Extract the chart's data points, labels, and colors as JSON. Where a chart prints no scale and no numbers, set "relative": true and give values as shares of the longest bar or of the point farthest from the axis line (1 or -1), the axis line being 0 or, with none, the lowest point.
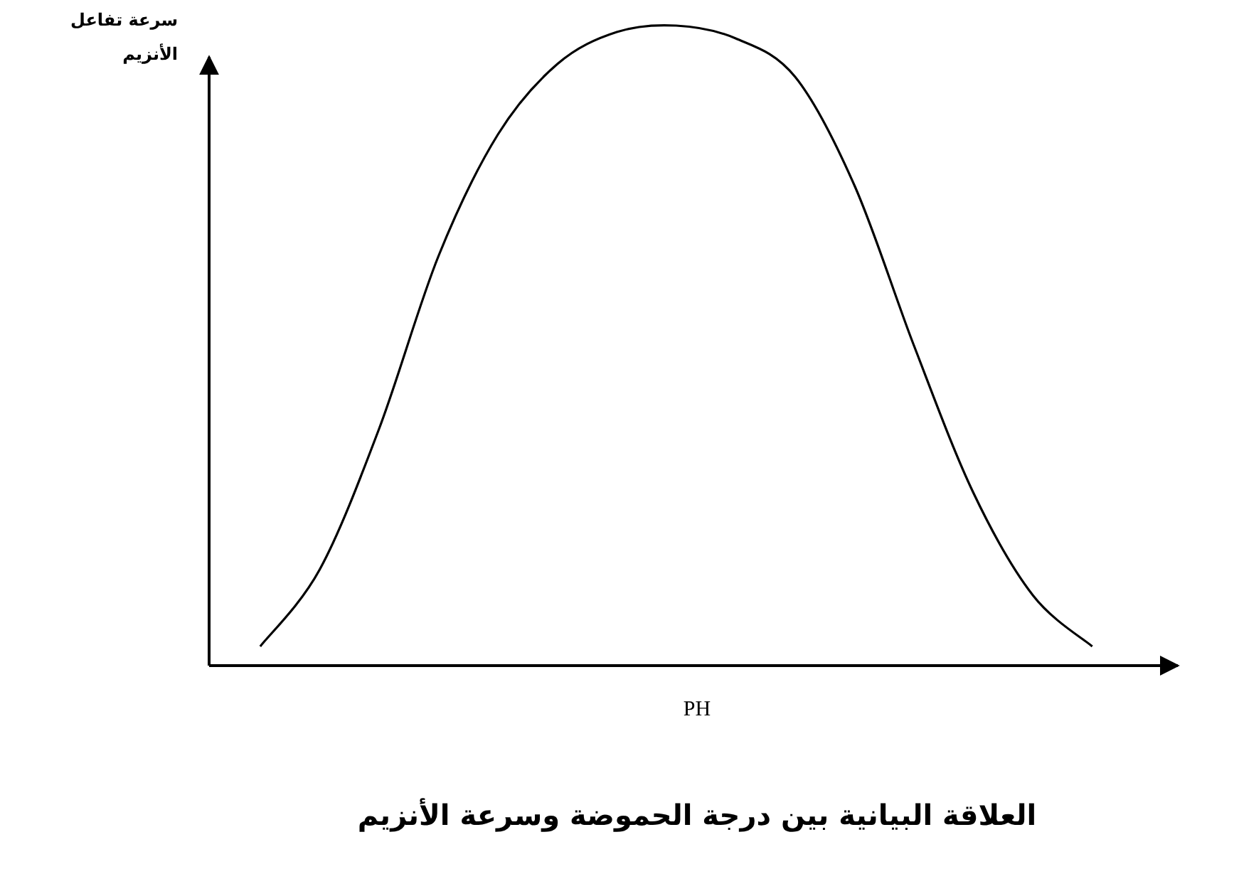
{
  "chart_data": {
    "type": "line",
    "relative": true,
    "title": "العلاقة البيانية بين درجة الحموضة وسرعة الأنزيم",
    "xlabel": "PH",
    "ylabel": "سرعة تفاعل الأنزيم",
    "categories": [
      null,
      null,
      null,
      null,
      null,
      null,
      null,
      null,
      null,
      null,
      null,
      null,
      null,
      null,
      null
    ],
    "values": [
      0.03,
      0.15,
      0.37,
      0.64,
      0.83,
      0.94,
      0.99,
      1.0,
      0.98,
      0.92,
      0.75,
      0.5,
      0.27,
      0.11,
      0.03
    ],
    "color": "#000000",
    "marker": "none"
  }
}
